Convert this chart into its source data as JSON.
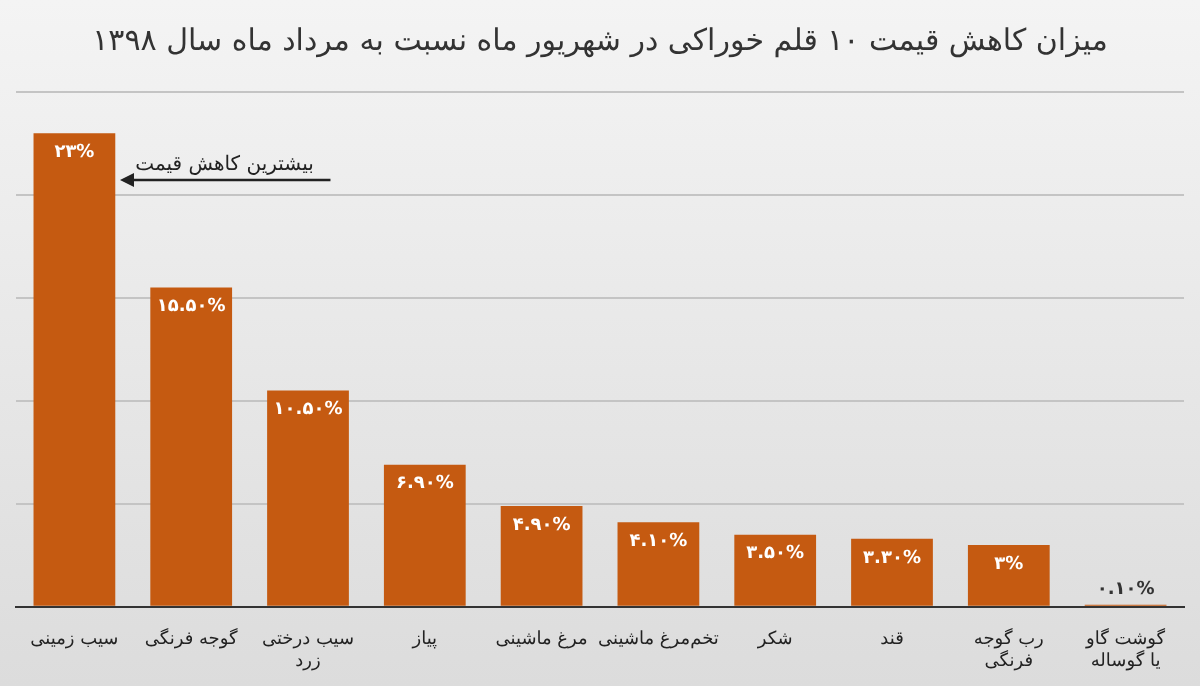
{
  "chart_data": {
    "type": "bar",
    "title": "میزان کاهش قیمت ۱۰ قلم خوراکی در شهریور ماه نسبت به مرداد ماه سال ۱۳۹۸",
    "categories": [
      "سیب زمینی",
      "گوجه فرنگی",
      "سیب درختی زرد",
      "پیاز",
      "مرغ ماشینی",
      "تخم‌مرغ ماشینی",
      "شکر",
      "قند",
      "رب گوجه فرنگی",
      "گوشت گاو یا گوساله"
    ],
    "values": [
      23,
      15.5,
      10.5,
      6.9,
      4.9,
      4.1,
      3.5,
      3.3,
      3,
      0.1
    ],
    "value_labels": [
      "۲۳%",
      "۱۵.۵۰%",
      "۱۰.۵۰%",
      "۶.۹۰%",
      "۴.۹۰%",
      "۴.۱۰%",
      "۳.۵۰%",
      "۳.۳۰%",
      "۳%",
      "۰.۱۰%"
    ],
    "color": "#c55a11",
    "ylim": [
      0,
      25
    ],
    "yticks": [
      {
        "value": 0,
        "label": null
      },
      {
        "value": 5,
        "label": null
      },
      {
        "value": 10,
        "label": null
      },
      {
        "value": 15,
        "label": null
      },
      {
        "value": 20,
        "label": null
      },
      {
        "value": 25,
        "label": null
      }
    ],
    "grid": "y",
    "tick_labels": "x",
    "legend": false,
    "annotations": [
      "بیشترین کاهش قیمت"
    ]
  }
}
